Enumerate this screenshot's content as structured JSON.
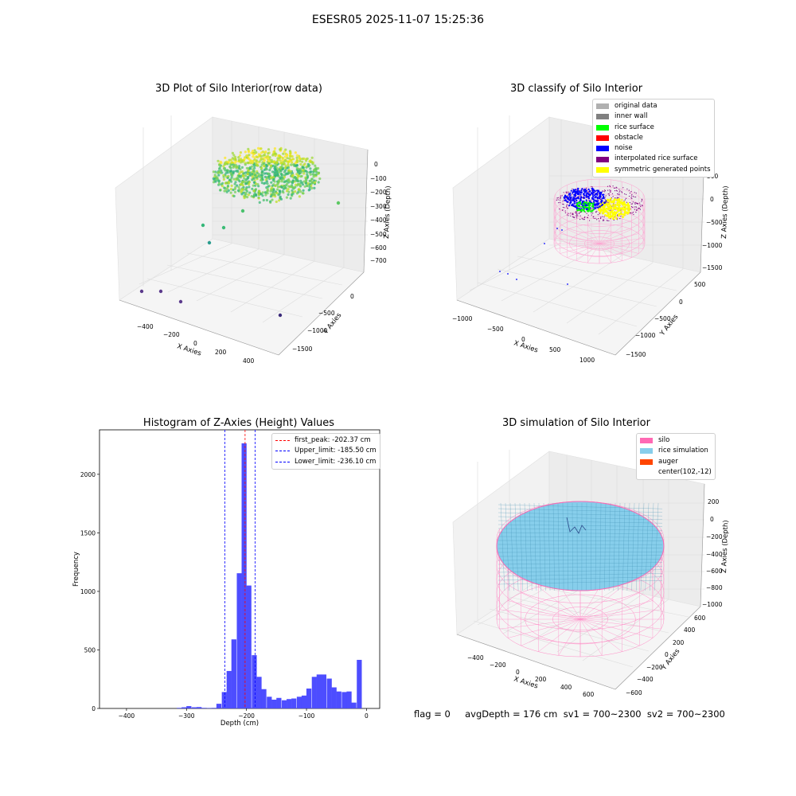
{
  "figure": {
    "title": "ESESR05 2025-11-07 15:25:36"
  },
  "footer": {
    "text": "flag = 0     avgDepth = 176 cm  sv1 = 700~2300  sv2 = 700~2300"
  },
  "chart_data": [
    {
      "type": "scatter",
      "subtype": "3d",
      "title": "3D Plot of Silo Interior(row data)",
      "xlabel": "X Axies",
      "ylabel": "Y Axies",
      "zlabel": "Z Axies (Depth)",
      "xticks": [
        "−400",
        "−200",
        "0",
        "200",
        "400"
      ],
      "yticks": [
        "0",
        "−500",
        "−1000",
        "−1500"
      ],
      "zticks": [
        "0",
        "−100",
        "−200",
        "−300",
        "−400",
        "−500",
        "−600",
        "−700"
      ],
      "colormap": "viridis",
      "grid": true
    },
    {
      "type": "scatter",
      "subtype": "3d",
      "title": "3D classify of Silo Interior",
      "xlabel": "X Axies",
      "ylabel": "Y Axies",
      "zlabel": "Z Axies (Depth)",
      "xticks": [
        "−1000",
        "−500",
        "0",
        "500",
        "1000"
      ],
      "yticks": [
        "500",
        "0",
        "−500",
        "−1000",
        "−1500"
      ],
      "zticks": [
        "500",
        "0",
        "−500",
        "−1000",
        "−1500"
      ],
      "legend_position": "top-right",
      "legend": [
        {
          "label": "original data",
          "color": "#b0b0b0"
        },
        {
          "label": "inner wall",
          "color": "#808080"
        },
        {
          "label": "rice surface",
          "color": "#00ff00"
        },
        {
          "label": "obstacle",
          "color": "#ff0000"
        },
        {
          "label": "noise",
          "color": "#0000ff"
        },
        {
          "label": "interpolated rice surface",
          "color": "#800080"
        },
        {
          "label": "symmetric generated points",
          "color": "#ffff00"
        }
      ],
      "grid": true
    },
    {
      "type": "histogram",
      "title": "Histogram of Z-Axies (Height) Values",
      "xlabel": "Depth (cm)",
      "ylabel": "Frequency",
      "xlim": [
        -445,
        22
      ],
      "ylim": [
        0,
        2380
      ],
      "xticks": [
        -400,
        -300,
        -200,
        -100,
        0
      ],
      "xtick_labels": [
        "−400",
        "−300",
        "−200",
        "−100",
        "0"
      ],
      "yticks": [
        0,
        500,
        1000,
        1500,
        2000
      ],
      "bar_color": "#4d4dff",
      "bin_width": 8.3,
      "bins": [
        {
          "x": -312,
          "v": 5
        },
        {
          "x": -304,
          "v": 10
        },
        {
          "x": -296,
          "v": 20
        },
        {
          "x": -287,
          "v": 10
        },
        {
          "x": -279,
          "v": 12
        },
        {
          "x": -271,
          "v": 5
        },
        {
          "x": -262,
          "v": 4
        },
        {
          "x": -254,
          "v": 5
        },
        {
          "x": -246,
          "v": 40
        },
        {
          "x": -237,
          "v": 140
        },
        {
          "x": -229,
          "v": 320
        },
        {
          "x": -221,
          "v": 590
        },
        {
          "x": -212,
          "v": 1155
        },
        {
          "x": -204,
          "v": 2265
        },
        {
          "x": -196,
          "v": 1050
        },
        {
          "x": -187,
          "v": 455
        },
        {
          "x": -179,
          "v": 270
        },
        {
          "x": -171,
          "v": 165
        },
        {
          "x": -162,
          "v": 100
        },
        {
          "x": -154,
          "v": 75
        },
        {
          "x": -146,
          "v": 90
        },
        {
          "x": -137,
          "v": 70
        },
        {
          "x": -129,
          "v": 80
        },
        {
          "x": -121,
          "v": 85
        },
        {
          "x": -112,
          "v": 100
        },
        {
          "x": -104,
          "v": 110
        },
        {
          "x": -96,
          "v": 170
        },
        {
          "x": -87,
          "v": 270
        },
        {
          "x": -79,
          "v": 290
        },
        {
          "x": -71,
          "v": 290
        },
        {
          "x": -62,
          "v": 255
        },
        {
          "x": -54,
          "v": 180
        },
        {
          "x": -46,
          "v": 145
        },
        {
          "x": -37,
          "v": 140
        },
        {
          "x": -29,
          "v": 145
        },
        {
          "x": -21,
          "v": 50
        },
        {
          "x": -12,
          "v": 415
        }
      ],
      "vlines": [
        {
          "label": "first_peak: -202.37 cm",
          "x": -202.37,
          "color": "#ff0000"
        },
        {
          "label": "Upper_limit: -185.50 cm",
          "x": -185.5,
          "color": "#0000ff"
        },
        {
          "label": "Lower_limit: -236.10 cm",
          "x": -236.1,
          "color": "#0000ff"
        }
      ],
      "legend_position": "top-right"
    },
    {
      "type": "surface",
      "subtype": "3d",
      "title": "3D simulation of Silo Interior",
      "xlabel": "X Axies",
      "ylabel": "Y Axies",
      "zlabel": "Z Axies (Depth)",
      "xticks": [
        "−400",
        "−200",
        "0",
        "200",
        "400",
        "600"
      ],
      "yticks": [
        "600",
        "400",
        "200",
        "0",
        "−200",
        "−400",
        "−600"
      ],
      "zticks": [
        "200",
        "0",
        "−200",
        "−400",
        "−600",
        "−800",
        "−1000"
      ],
      "legend_position": "top-right",
      "legend": [
        {
          "label": "silo",
          "color": "#ff69b4"
        },
        {
          "label": "rice simulation",
          "color": "#87ceeb"
        },
        {
          "label": "auger",
          "color": "#ff4500"
        },
        {
          "label": "center(102,-12)",
          "color": ""
        }
      ],
      "grid": true
    }
  ]
}
